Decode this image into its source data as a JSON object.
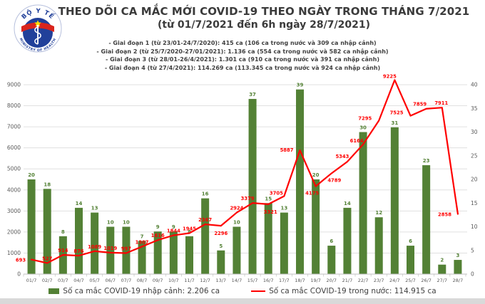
{
  "header": {
    "title": "THEO DÕI CA MẮC MỚI COVID-19 THEO NGÀY TRONG THÁNG 7/2021",
    "subtitle": "(từ 01/7/2021 đến 6h ngày 28/7/2021)",
    "logo": {
      "top_text": "BỘ Y TẾ",
      "bottom_text": "MINISTRY OF HEALTH"
    },
    "notes": [
      "- Giai đoạn 1 (từ 23/01-24/7/2020): 415 ca (106 ca trong nước và 309 ca nhập cảnh)",
      "- Giai đoạn 2 (từ 25/7/2020-27/01/2021): 1.136 ca (554 ca trong nước và 582 ca nhập cảnh)",
      "- Giai đoạn 3 (từ 28/01-26/4/2021): 1.301 ca (910 ca trong nước và 391 ca nhập cảnh)",
      "- Giai đoạn 4 (từ 27/4/2021): 114.269 ca (113.345 ca trong nước và 924 ca nhập cảnh)"
    ]
  },
  "chart_data": {
    "type": "bar",
    "title": "THEO DÕI CA MẮC MỚI COVID-19 THEO NGÀY TRONG THÁNG 7/2021",
    "categories": [
      "01/7",
      "02/7",
      "03/7",
      "04/7",
      "05/7",
      "06/7",
      "07/7",
      "08/7",
      "09/7",
      "10/7",
      "11/7",
      "12/7",
      "13/7",
      "14/7",
      "15/7",
      "16/7",
      "17/7",
      "18/7",
      "19/7",
      "20/7",
      "21/7",
      "22/7",
      "23/7",
      "24/7",
      "25/7",
      "26/7",
      "27/7",
      "28/7"
    ],
    "series": [
      {
        "name": "Số ca mắc COVID-19 nhập cảnh",
        "type": "bar",
        "axis": "right",
        "color": "#538135",
        "values": [
          20,
          18,
          8,
          14,
          13,
          10,
          10,
          7,
          9,
          9,
          8,
          16,
          5,
          10,
          37,
          15,
          13,
          39,
          20,
          6,
          14,
          30,
          12,
          31,
          6,
          23,
          2,
          3
        ]
      },
      {
        "name": "Số ca mắc COVID-19 trong nước",
        "type": "line",
        "axis": "left",
        "color": "#ff0000",
        "values": [
          693,
          527,
          914,
          876,
          1089,
          1019,
          997,
          1307,
          1616,
          1844,
          1945,
          2367,
          2296,
          2924,
          3379,
          3321,
          3705,
          5887,
          4175,
          4789,
          5343,
          6164,
          7295,
          9225,
          7525,
          7859,
          7911,
          2858
        ]
      }
    ],
    "left_axis": {
      "min": 0,
      "max": 9000,
      "step": 1000,
      "ticks": [
        0,
        1000,
        2000,
        3000,
        4000,
        5000,
        6000,
        7000,
        8000,
        9000
      ]
    },
    "right_axis": {
      "min": 0,
      "max": 40,
      "step": 5,
      "ticks": [
        0,
        5,
        10,
        15,
        20,
        25,
        30,
        35,
        40
      ]
    },
    "grid": true,
    "legend_position": "bottom",
    "data_labels": true
  },
  "legend": [
    {
      "swatch": "bar",
      "color": "#538135",
      "label": "Số ca mắc COVID-19 nhập cảnh: 2.206 ca"
    },
    {
      "swatch": "line",
      "color": "#ff0000",
      "label": "Số ca mắc COVID-19 trong nước: 114.915 ca"
    }
  ],
  "colors": {
    "bar_green": "#538135",
    "line_red": "#ff0000",
    "grid_gray": "#e0e0e0",
    "axis_text": "#595959",
    "title_text": "#3b3b3b",
    "flag_red": "#da251d",
    "star_yellow": "#ffde00",
    "emblem_navy": "#21409a"
  }
}
